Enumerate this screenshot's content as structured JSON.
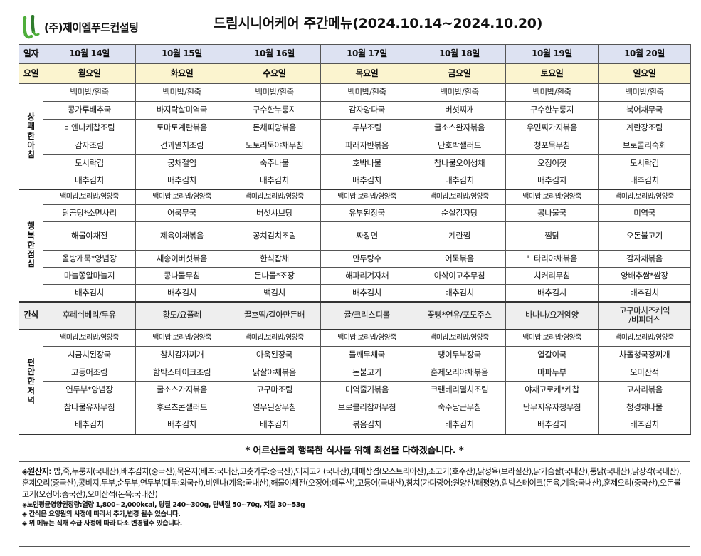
{
  "header": {
    "company": "(주)제이엘푸드컨설팅",
    "title": "드림시니어케어 주간메뉴(2024.10.14~2024.10.20)",
    "logo_colors": {
      "green": "#4fae3b",
      "dark": "#2f7d2c"
    }
  },
  "table": {
    "date_label": "일자",
    "dates": [
      "10월 14일",
      "10월 15일",
      "10월 16일",
      "10월 17일",
      "10월 18일",
      "10월 19일",
      "10월 20일"
    ],
    "day_label": "요일",
    "days": [
      "월요일",
      "화요일",
      "수요일",
      "목요일",
      "금요일",
      "토요일",
      "일요일"
    ],
    "breakfast": {
      "label": [
        "상",
        "쾌",
        "한",
        "아",
        "침"
      ],
      "rows": [
        [
          "백미밥/흰죽",
          "백미밥/흰죽",
          "백미밥/흰죽",
          "백미밥/흰죽",
          "백미밥/흰죽",
          "백미밥/흰죽",
          "백미밥/흰죽"
        ],
        [
          "콩가루배추국",
          "바지락살미역국",
          "구수한누룽지",
          "감자양파국",
          "버섯찌개",
          "구수한누룽지",
          "북어채무국"
        ],
        [
          "비엔나케찹조림",
          "토마토계란볶음",
          "돈채피망볶음",
          "두부조림",
          "굴소스완자볶음",
          "우민찌가지볶음",
          "계란장조림"
        ],
        [
          "감자조림",
          "견과멸치조림",
          "도토리묵야채무침",
          "파래자반볶음",
          "단호박샐러드",
          "청포묵무침",
          "브로콜리숙회"
        ],
        [
          "도시락김",
          "궁채절임",
          "숙주나물",
          "호박나물",
          "참나물오이생채",
          "오징어젓",
          "도시락김"
        ],
        [
          "배추김치",
          "배추김치",
          "배추김치",
          "배추김치",
          "배추김치",
          "배추김치",
          "배추김치"
        ]
      ]
    },
    "lunch": {
      "label": [
        "행",
        "복",
        "한",
        "점",
        "심"
      ],
      "rows": [
        [
          "백미밥,보리밥/영양죽",
          "백미밥,보리밥/영양죽",
          "백미밥,보리밥/영양죽",
          "백미밥,보리밥/영양죽",
          "백미밥,보리밥/영양죽",
          "백미밥,보리밥/영양죽",
          "백미밥,보리밥/영양죽"
        ],
        [
          "닭곰탕*소면사리",
          "어묵무국",
          "버섯샤브탕",
          "유부된장국",
          "순살감자탕",
          "콩나물국",
          "미역국"
        ],
        [
          "해물야채전",
          "제육야채볶음",
          "꽁치김치조림",
          "짜장면",
          "계란찜",
          "찜닭",
          "오돈불고기"
        ],
        [
          "올방개묵*양념장",
          "새송이버섯볶음",
          "한식잡채",
          "만두탕수",
          "어묵볶음",
          "느타리야채볶음",
          "감자채볶음"
        ],
        [
          "마늘쫑알마늘지",
          "콩나물무침",
          "돈나물*조장",
          "해파리겨자채",
          "아삭이고추무침",
          "치커리무침",
          "양배추쌈*쌈장"
        ],
        [
          "배추김치",
          "배추김치",
          "백김치",
          "배추김치",
          "배추김치",
          "배추김치",
          "배추김치"
        ]
      ]
    },
    "snack": {
      "label": "간식",
      "items": [
        "후레쉬베리/두유",
        "황도/요플레",
        "꿀호떡/갈아만든배",
        "귤/크리스피롤",
        "꽃빵*연유/포도주스",
        "바나나/요거암양",
        "고구마치즈케익\n/비피더스"
      ]
    },
    "dinner": {
      "label": [
        "편",
        "안",
        "한",
        "저",
        "녁"
      ],
      "rows": [
        [
          "백미밥,보리밥/영양죽",
          "백미밥,보리밥/영양죽",
          "백미밥,보리밥/영양죽",
          "백미밥,보리밥/영양죽",
          "백미밥,보리밥/영양죽",
          "백미밥,보리밥/영양죽",
          "백미밥,보리밥/영양죽"
        ],
        [
          "시금치된장국",
          "참치감자찌개",
          "아욱된장국",
          "들깨무채국",
          "팽이두부장국",
          "열갈이국",
          "차돌청국장찌개"
        ],
        [
          "고등어조림",
          "함박스테이크조림",
          "닭살야채볶음",
          "돈불고기",
          "훈제오리야채볶음",
          "마파두부",
          "오미산적"
        ],
        [
          "연두부*양념장",
          "굴소스가지볶음",
          "고구마조림",
          "미역줄기볶음",
          "크랜베리멸치조림",
          "야채고로케*케찹",
          "고사리볶음"
        ],
        [
          "참나물유자무침",
          "후르츠콘샐러드",
          "열무된장무침",
          "브로콜리참깨무침",
          "숙주당근무침",
          "단무지유자청무침",
          "청경채나물"
        ],
        [
          "배추김치",
          "배추김치",
          "배추김치",
          "볶음김치",
          "배추김치",
          "배추김치",
          "배추김치"
        ]
      ]
    }
  },
  "notice": "* 어르신들의 행복한 식사를 위해 최선을 다하겠습니다. *",
  "origin": {
    "label": "◈원산지:",
    "text": " 밥,죽,누룽지(국내산),배추김치(중국산),묵은지(배추:국내산,고춧가루:중국산),돼지고기(국내산),대패삽겹(오스트리아산),소고기(호주산),닭정육(브라질산),닭가슴살(국내산),통닭(국내산),닭장각(국내산),훈제오리(중국산),콩비지,두부,순두부,연두부(대두:외국산),비엔나(계육:국내산),해물야채전(오징어:페루산),고등어(국내산),참치(가다랑어:원양산/태평양),함박스테이크(돈육,계육:국내산),훈제오리(중국산),오돈불고기(오징어:중국산),오미산적(돈육:국내산)"
  },
  "notes": [
    "◈노인평균영양권장량:열량 1,800~2,000kcal, 당질 240~300g, 단백질 50~70g, 지질 30~53g",
    "◈ 간식은 요양원의 사정에 따라서 추가,변경 될수 있습니다.",
    "◈ 위 메뉴는 식재 수급 사정에 따라 다소 변경될수 있습니다."
  ]
}
